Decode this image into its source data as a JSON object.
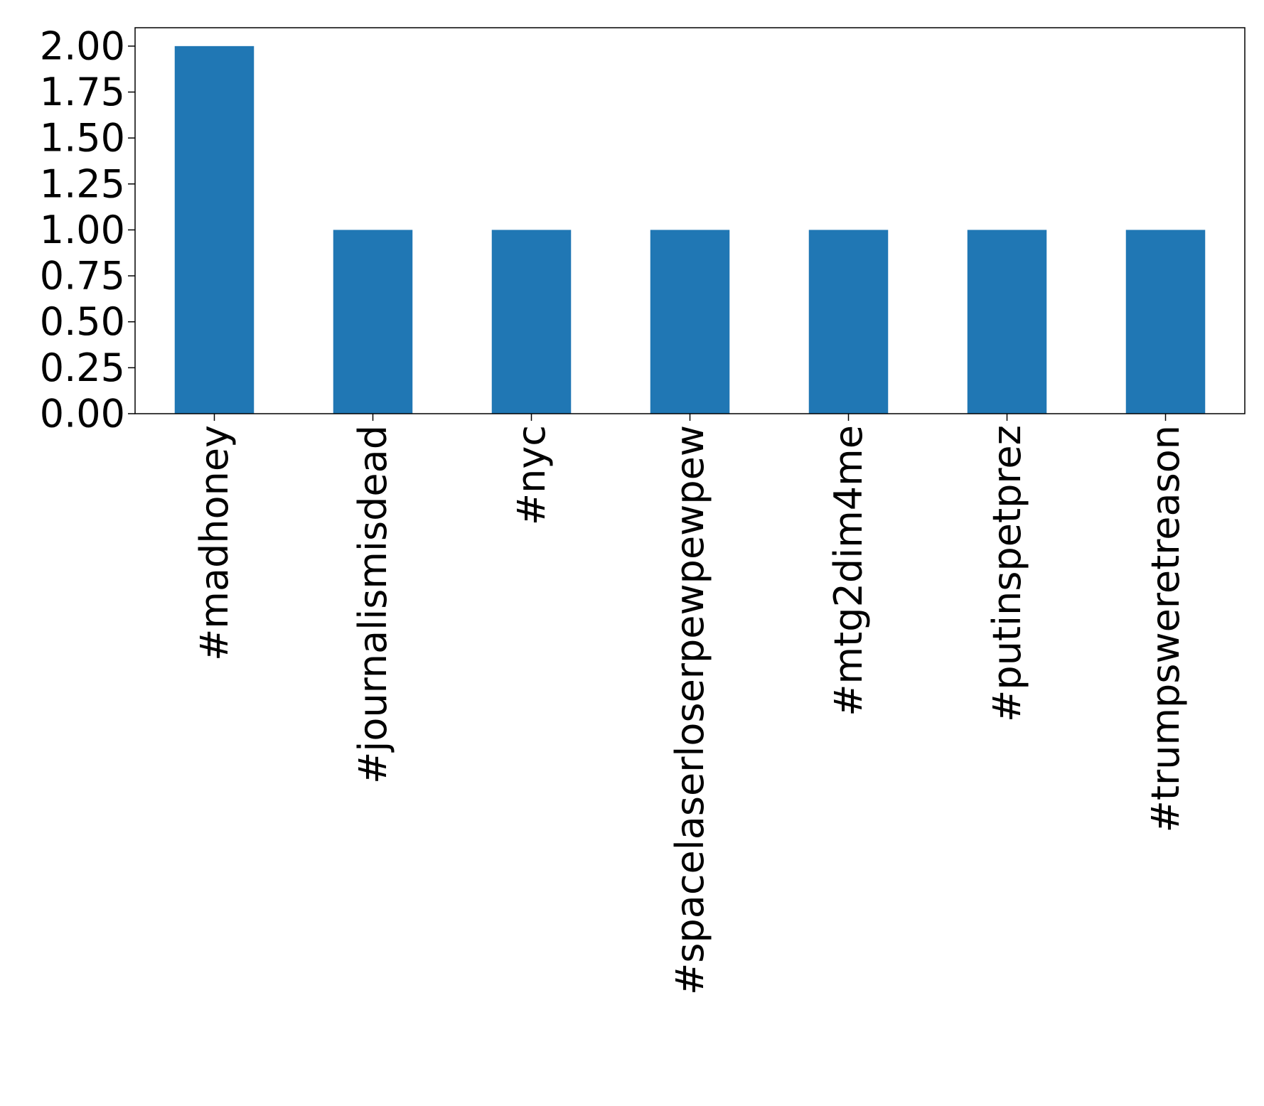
{
  "chart_data": {
    "type": "bar",
    "title": "",
    "xlabel": "",
    "ylabel": "",
    "categories": [
      "#madhoney",
      "#journalismisdead",
      "#nyc",
      "#spacelaserloserpewpewpew",
      "#mtg2dim4me",
      "#putinspetprez",
      "#trumpsweretreason"
    ],
    "values": [
      2,
      1,
      1,
      1,
      1,
      1,
      1
    ],
    "ylim": [
      0,
      2.1
    ],
    "yticks": [
      "0.00",
      "0.25",
      "0.50",
      "0.75",
      "1.00",
      "1.25",
      "1.50",
      "1.75",
      "2.00"
    ],
    "ytick_values": [
      0,
      0.25,
      0.5,
      0.75,
      1.0,
      1.25,
      1.5,
      1.75,
      2.0
    ],
    "bar_color": "#2077b4",
    "grid": false,
    "legend": "none"
  }
}
